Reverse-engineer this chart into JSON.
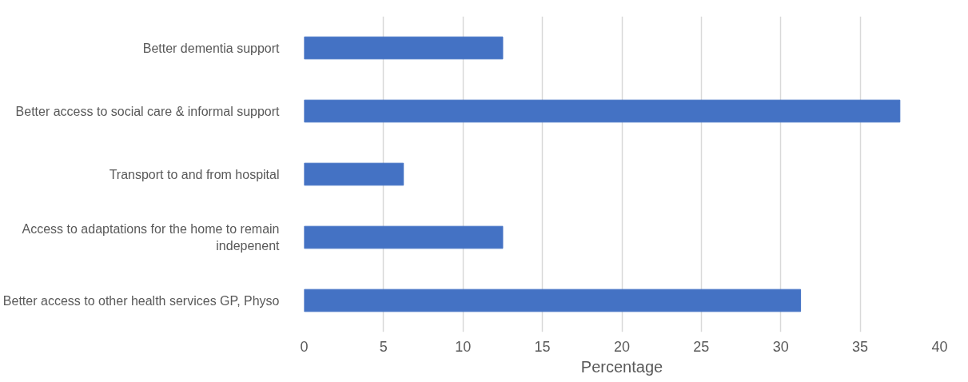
{
  "chart_data": {
    "type": "bar",
    "orientation": "horizontal",
    "categories": [
      "Better dementia support",
      "Better access to social care & informal support",
      "Transport to and from hospital",
      "Access to adaptations for the home to remain indepenent",
      "Better access to other health services GP, Physo"
    ],
    "values": [
      12.5,
      37.5,
      6.25,
      12.5,
      31.25
    ],
    "color": "#4472c4",
    "xlim": [
      0,
      40
    ],
    "xticks": [
      0,
      5,
      10,
      15,
      20,
      25,
      30,
      35,
      40
    ],
    "xlabel": "Percentage",
    "grid": "x"
  }
}
